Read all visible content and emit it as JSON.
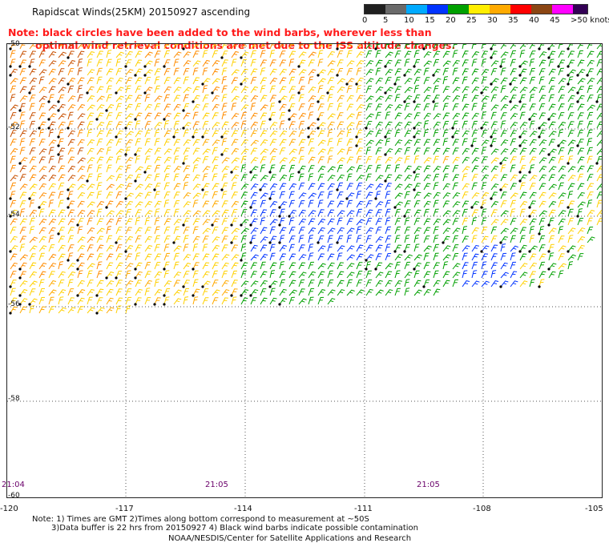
{
  "header": {
    "title": "Rapidscat Winds(25KM) 20150927 ascending",
    "note_line1": "Note: black circles have been added to the wind barbs, wherever less than",
    "note_line2": "optimal wind retrieval conditions are met due to the ISS altitude changes."
  },
  "colorbar": {
    "labels": [
      "0",
      "5",
      "10",
      "15",
      "20",
      "25",
      "30",
      "35",
      "40",
      "45",
      ">50 knots"
    ],
    "colors": [
      "#202020",
      "#6a6a6a",
      "#00aaff",
      "#0033ff",
      "#00a000",
      "#ffee00",
      "#ffaa00",
      "#ff0000",
      "#8b4513",
      "#ff00ff",
      "#330055"
    ]
  },
  "map": {
    "lat_labels": [
      "-50",
      "-52",
      "-54",
      "-56",
      "-58",
      "-60"
    ],
    "lon_labels": [
      "-120",
      "-117",
      "-114",
      "-111",
      "-108",
      "-105"
    ],
    "lat_values": [
      -50,
      -52,
      -54,
      -56,
      -58,
      -60
    ],
    "lon_values": [
      -120,
      -117,
      -114,
      -111,
      -108,
      -105
    ],
    "times": [
      "21:04",
      "21:05",
      "21:05"
    ]
  },
  "footer": {
    "line1": "Note: 1) Times are GMT 2)Times along bottom correspond to measurement at ~50S",
    "line2": "3)Data buffer is 22 hrs from 20150927 4) Black wind barbs indicate possible contamination",
    "credit": "NOAA/NESDIS/Center for Satellite Applications and Research"
  }
}
